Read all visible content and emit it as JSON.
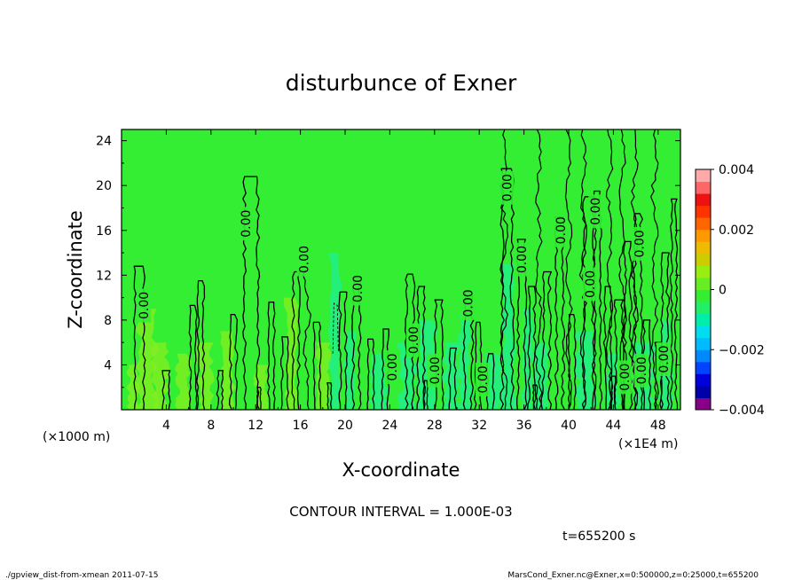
{
  "chart_data": {
    "type": "heatmap",
    "title": "disturbunce of Exner",
    "xlabel": "X-coordinate",
    "ylabel": "Z-coordinate",
    "x_unit_label": "(×1000 m)",
    "x_scale_label": "(×1E4 m)",
    "xlim": [
      0,
      50
    ],
    "ylim": [
      0,
      25
    ],
    "x_ticks": [
      "4",
      "8",
      "12",
      "16",
      "20",
      "24",
      "28",
      "32",
      "36",
      "40",
      "44",
      "48"
    ],
    "y_ticks": [
      "4",
      "8",
      "12",
      "16",
      "20",
      "24"
    ],
    "contour_interval_text": "CONTOUR INTERVAL = 1.000E-03",
    "time_text": "t=655200 s",
    "colorbar": {
      "min": -0.004,
      "max": 0.004,
      "tick_labels": [
        "0.004",
        "0.002",
        "0",
        "−0.002",
        "−0.004"
      ],
      "tick_values": [
        0.004,
        0.002,
        0,
        -0.002,
        -0.004
      ]
    },
    "contour_labels": [
      {
        "x": 2.0,
        "y": 9.3,
        "text": "0.00"
      },
      {
        "x": 11.1,
        "y": 16.6,
        "text": "0.00"
      },
      {
        "x": 16.3,
        "y": 13.4,
        "text": "0.00"
      },
      {
        "x": 21.1,
        "y": 10.8,
        "text": "0.00"
      },
      {
        "x": 24.2,
        "y": 3.8,
        "text": "0.00"
      },
      {
        "x": 26.1,
        "y": 6.2,
        "text": "0.00"
      },
      {
        "x": 28.0,
        "y": 3.5,
        "text": "0.00"
      },
      {
        "x": 31.0,
        "y": 9.5,
        "text": "0.00"
      },
      {
        "x": 32.3,
        "y": 2.7,
        "text": "0.00"
      },
      {
        "x": 34.5,
        "y": 19.8,
        "text": "0.00"
      },
      {
        "x": 35.8,
        "y": 13.4,
        "text": "0.00"
      },
      {
        "x": 39.3,
        "y": 16.0,
        "text": "0.00"
      },
      {
        "x": 41.9,
        "y": 11.2,
        "text": "0.00"
      },
      {
        "x": 42.4,
        "y": 17.7,
        "text": "0.00"
      },
      {
        "x": 45.0,
        "y": 2.9,
        "text": "0.00"
      },
      {
        "x": 46.3,
        "y": 14.8,
        "text": "0.00"
      },
      {
        "x": 46.5,
        "y": 3.5,
        "text": "0.00"
      },
      {
        "x": 48.5,
        "y": 4.5,
        "text": "0.00"
      }
    ]
  },
  "footer": {
    "left": "./gpview_dist-from-xmean  2011-07-15",
    "right": "MarsCond_Exner.nc@Exner,x=0:500000,z=0:25000,t=655200"
  },
  "colors": {
    "background_green": "#33ee33",
    "light_green": "#88ee22",
    "cyan_green": "#22ee88",
    "contour": "#000000"
  }
}
